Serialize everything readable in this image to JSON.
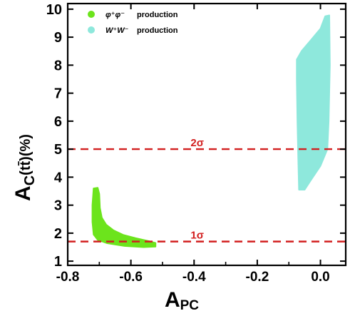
{
  "chart_data": {
    "type": "scatter",
    "x_ticks": [
      "-0.8",
      "-0.6",
      "-0.4",
      "-0.2",
      "0.0"
    ],
    "x_tick_values": [
      -0.8,
      -0.6,
      -0.4,
      -0.2,
      0.0
    ],
    "y_ticks": [
      "1",
      "2",
      "3",
      "4",
      "5",
      "6",
      "7",
      "8",
      "9",
      "10"
    ],
    "y_tick_values": [
      1,
      2,
      3,
      4,
      5,
      6,
      7,
      8,
      9,
      10
    ],
    "xlim": [
      -0.8,
      0.08
    ],
    "ylim": [
      0.85,
      10.2
    ],
    "xlabel": {
      "main": "A",
      "sub": "PC"
    },
    "ylabel": {
      "main": "A",
      "sub": "C",
      "suffix": "(tt̄)(%)"
    },
    "grid": false,
    "legend_placement": "top-left",
    "series": [
      {
        "name": "φ⁺φ⁻ production",
        "legend_label": "production",
        "legend_symbol": "φ⁺φ⁻",
        "color": "#6ce41c",
        "region": [
          [
            -0.718,
            3.6
          ],
          [
            -0.705,
            3.62
          ],
          [
            -0.7,
            3.4
          ],
          [
            -0.698,
            2.9
          ],
          [
            -0.692,
            2.55
          ],
          [
            -0.678,
            2.3
          ],
          [
            -0.655,
            2.1
          ],
          [
            -0.625,
            1.94
          ],
          [
            -0.585,
            1.82
          ],
          [
            -0.545,
            1.72
          ],
          [
            -0.522,
            1.65
          ],
          [
            -0.522,
            1.52
          ],
          [
            -0.56,
            1.5
          ],
          [
            -0.62,
            1.54
          ],
          [
            -0.675,
            1.64
          ],
          [
            -0.705,
            1.76
          ],
          [
            -0.718,
            1.95
          ],
          [
            -0.722,
            2.4
          ],
          [
            -0.722,
            3.0
          ]
        ]
      },
      {
        "name": "W⁺W⁻ production",
        "legend_label": "production",
        "legend_symbol": "W⁺W⁻",
        "color": "#8ee8dc",
        "region": [
          [
            -0.075,
            8.2
          ],
          [
            -0.06,
            8.5
          ],
          [
            -0.03,
            8.9
          ],
          [
            0.0,
            9.3
          ],
          [
            0.015,
            9.75
          ],
          [
            0.028,
            9.78
          ],
          [
            0.03,
            8.0
          ],
          [
            0.026,
            6.0
          ],
          [
            0.022,
            5.0
          ],
          [
            0.0,
            4.4
          ],
          [
            -0.03,
            3.9
          ],
          [
            -0.05,
            3.55
          ],
          [
            -0.068,
            3.55
          ],
          [
            -0.07,
            4.5
          ],
          [
            -0.073,
            6.0
          ],
          [
            -0.075,
            7.5
          ]
        ]
      }
    ],
    "hlines": [
      {
        "y": 5.0,
        "label": "2σ",
        "label_x": -0.39,
        "color": "#d21f1f",
        "style": "dashed"
      },
      {
        "y": 1.7,
        "label": "1σ",
        "label_x": -0.39,
        "color": "#d21f1f",
        "style": "dashed"
      }
    ]
  }
}
